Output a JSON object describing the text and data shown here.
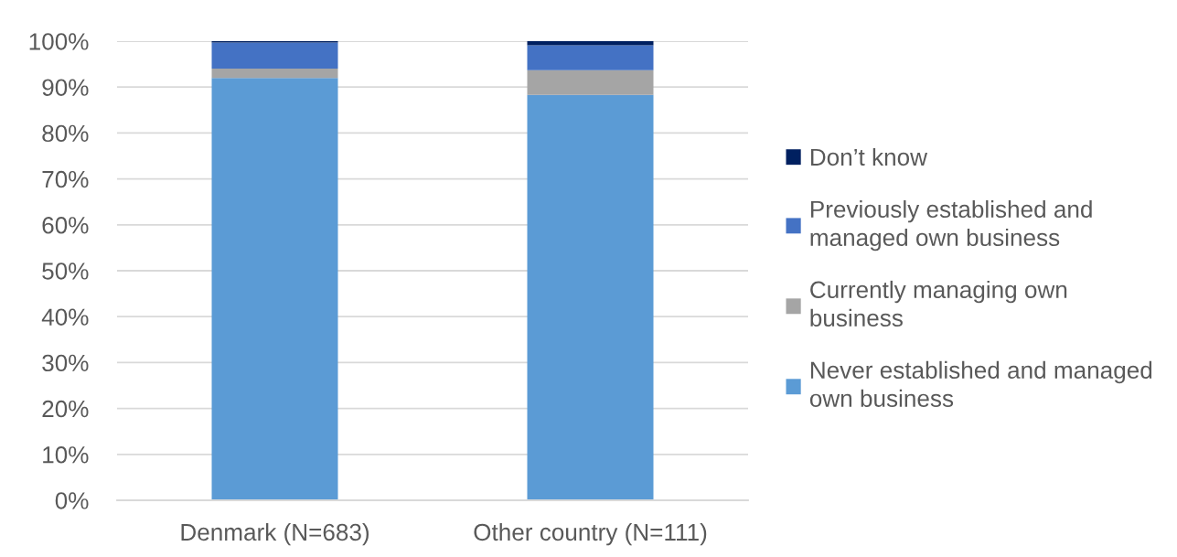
{
  "chart_data": {
    "type": "bar",
    "stacked": true,
    "categories": [
      "Denmark (N=683)",
      "Other country (N=111)"
    ],
    "series": [
      {
        "name": "Never established and managed own business",
        "color": "#5b9bd5",
        "values": [
          92.0,
          88.3
        ]
      },
      {
        "name": "Currently managing own business",
        "color": "#a5a5a5",
        "values": [
          2.0,
          5.4
        ]
      },
      {
        "name": "Previously established and managed own business",
        "color": "#4472c4",
        "values": [
          5.7,
          5.4
        ]
      },
      {
        "name": "Don’t know",
        "color": "#002060",
        "values": [
          0.3,
          0.9
        ]
      }
    ],
    "ylim": [
      0,
      100
    ],
    "yticks": [
      {
        "value": 0,
        "label": "0%"
      },
      {
        "value": 10,
        "label": "10%"
      },
      {
        "value": 20,
        "label": "20%"
      },
      {
        "value": 30,
        "label": "30%"
      },
      {
        "value": 40,
        "label": "40%"
      },
      {
        "value": 50,
        "label": "50%"
      },
      {
        "value": 60,
        "label": "60%"
      },
      {
        "value": 70,
        "label": "70%"
      },
      {
        "value": 80,
        "label": "80%"
      },
      {
        "value": 90,
        "label": "90%"
      },
      {
        "value": 100,
        "label": "100%"
      }
    ],
    "grid": "y",
    "legend": "right"
  }
}
